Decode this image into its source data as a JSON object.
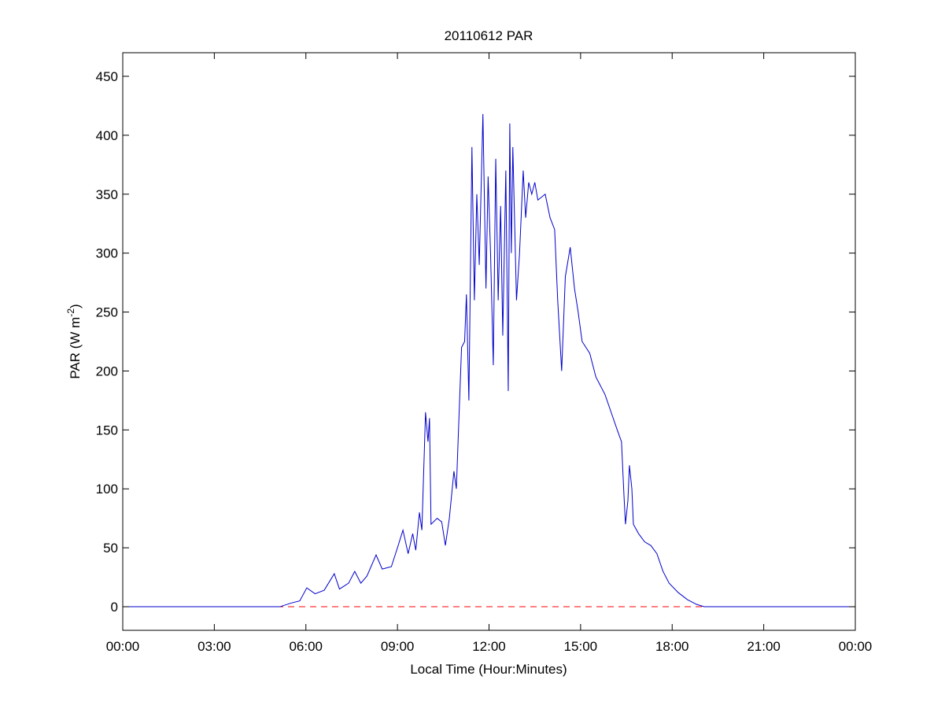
{
  "chart_data": {
    "type": "line",
    "title": "20110612 PAR",
    "xlabel": "Local Time (Hour:Minutes)",
    "ylabel": {
      "text": "PAR (W m",
      "sup": "-2",
      "end": ")"
    },
    "xlim": [
      0,
      24
    ],
    "xticks": [
      {
        "value": 0,
        "label": "00:00"
      },
      {
        "value": 3,
        "label": "03:00"
      },
      {
        "value": 6,
        "label": "06:00"
      },
      {
        "value": 9,
        "label": "09:00"
      },
      {
        "value": 12,
        "label": "12:00"
      },
      {
        "value": 15,
        "label": "15:00"
      },
      {
        "value": 18,
        "label": "18:00"
      },
      {
        "value": 21,
        "label": "21:00"
      },
      {
        "value": 24,
        "label": "00:00"
      }
    ],
    "ylim": [
      -20,
      470
    ],
    "yticks": [
      0,
      50,
      100,
      150,
      200,
      250,
      300,
      350,
      400,
      450
    ],
    "hline": {
      "value": 0,
      "color": "#ff0000"
    },
    "series": [
      {
        "color": "#0000cc",
        "x": [
          0,
          5.15,
          5.5,
          5.8,
          6.03,
          6.3,
          6.6,
          6.93,
          7.1,
          7.4,
          7.6,
          7.8,
          8.0,
          8.3,
          8.5,
          8.8,
          9.0,
          9.18,
          9.35,
          9.5,
          9.6,
          9.72,
          9.8,
          9.92,
          10.0,
          10.05,
          10.1,
          10.3,
          10.45,
          10.57,
          10.7,
          10.85,
          10.93,
          11.0,
          11.1,
          11.2,
          11.26,
          11.34,
          11.44,
          11.52,
          11.6,
          11.68,
          11.8,
          11.9,
          11.97,
          12.05,
          12.14,
          12.22,
          12.3,
          12.38,
          12.45,
          12.55,
          12.63,
          12.68,
          12.73,
          12.78,
          12.9,
          13.0,
          13.12,
          13.2,
          13.3,
          13.4,
          13.5,
          13.6,
          13.84,
          14.0,
          14.15,
          14.25,
          14.38,
          14.5,
          14.66,
          14.8,
          14.92,
          15.05,
          15.3,
          15.5,
          15.8,
          16.0,
          16.2,
          16.34,
          16.42,
          16.47,
          16.55,
          16.6,
          16.68,
          16.73,
          16.9,
          17.1,
          17.3,
          17.5,
          17.7,
          17.9,
          18.2,
          18.5,
          18.8,
          19.05,
          24
        ],
        "values": [
          0,
          0,
          3,
          5,
          16,
          11,
          14,
          28,
          15,
          20,
          30,
          20,
          26,
          44,
          32,
          34,
          50,
          65,
          45,
          62,
          48,
          80,
          65,
          165,
          140,
          160,
          70,
          75,
          72,
          52,
          75,
          115,
          100,
          150,
          220,
          225,
          265,
          175,
          390,
          260,
          350,
          290,
          418,
          270,
          365,
          300,
          205,
          380,
          260,
          340,
          230,
          370,
          183,
          410,
          300,
          390,
          260,
          300,
          370,
          330,
          360,
          350,
          360,
          345,
          350,
          330,
          320,
          260,
          200,
          280,
          305,
          270,
          250,
          225,
          215,
          195,
          180,
          165,
          150,
          140,
          95,
          70,
          90,
          120,
          100,
          70,
          62,
          55,
          52,
          45,
          30,
          20,
          12,
          6,
          2,
          0,
          0
        ]
      }
    ]
  }
}
